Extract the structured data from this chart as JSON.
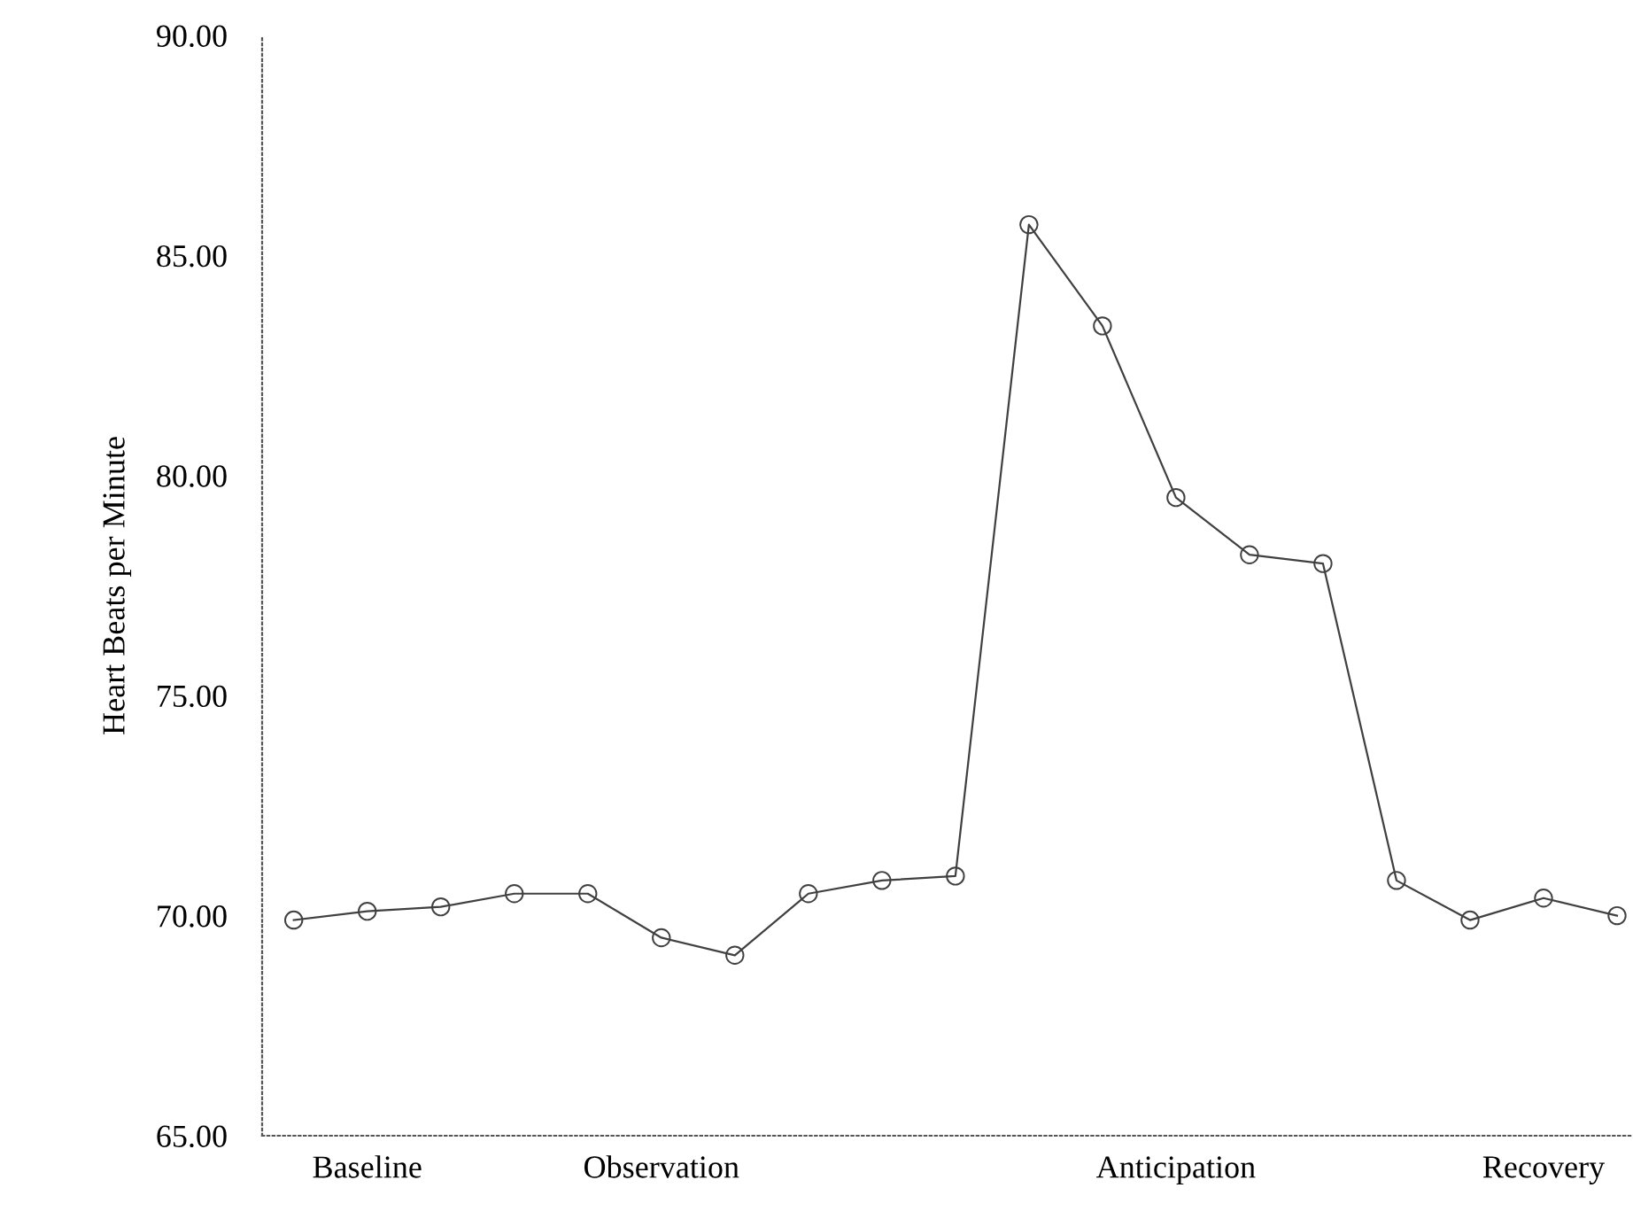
{
  "chart_data": {
    "type": "line",
    "ylabel": "Heart Beats per Minute",
    "categories": [
      null,
      "Baseline",
      null,
      null,
      null,
      "Observation",
      null,
      null,
      null,
      null,
      null,
      null,
      "Anticipation",
      null,
      null,
      null,
      null,
      "Recovery",
      null
    ],
    "series": [
      {
        "color": "#404040",
        "values": [
          69.9,
          70.1,
          70.2,
          70.5,
          70.5,
          69.5,
          69.1,
          70.5,
          70.8,
          70.9,
          85.7,
          83.4,
          79.5,
          78.2,
          78.0,
          70.8,
          69.9,
          70.4,
          70.0
        ]
      }
    ],
    "ylim": [
      65,
      90
    ],
    "yticks": [
      {
        "value": 65,
        "label": "65.00"
      },
      {
        "value": 70,
        "label": "70.00"
      },
      {
        "value": 75,
        "label": "75.00"
      },
      {
        "value": 80,
        "label": "80.00"
      },
      {
        "value": 85,
        "label": "85.00"
      },
      {
        "value": 90,
        "label": "90.00"
      }
    ],
    "marker": "circle",
    "line_style": "solid",
    "grid": false
  }
}
